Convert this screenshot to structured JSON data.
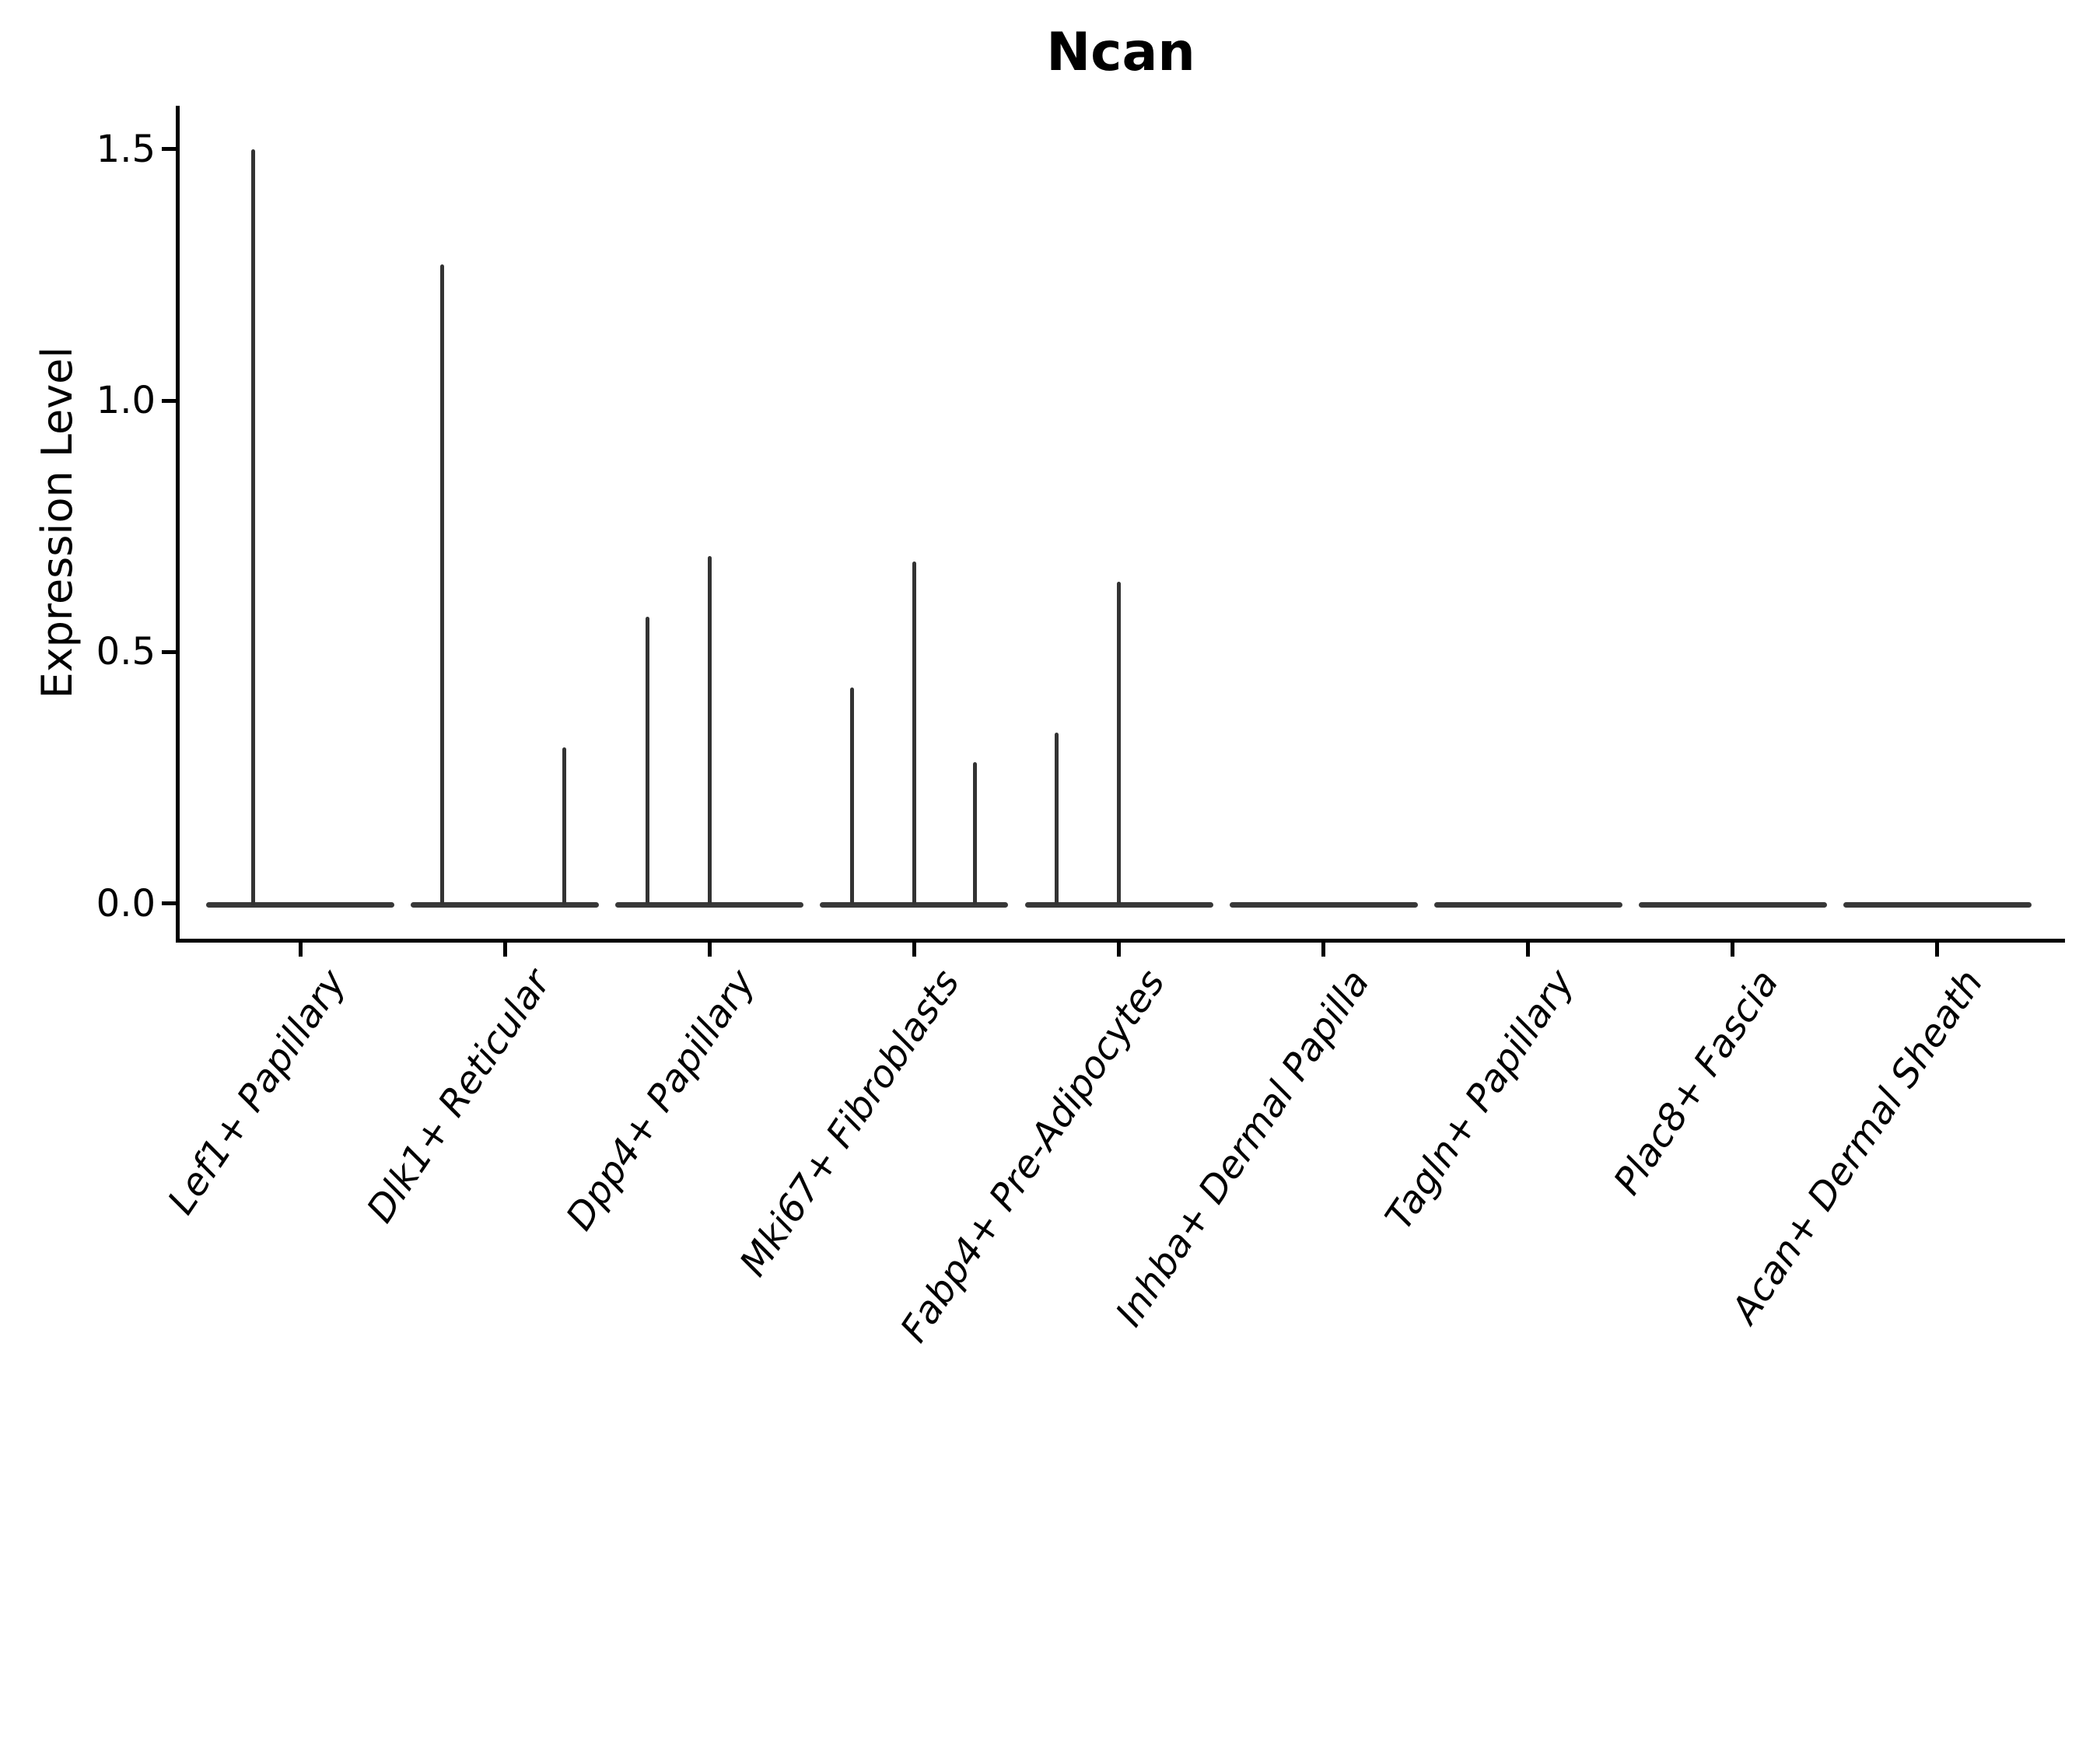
{
  "title": "Ncan",
  "y_axis": {
    "label": "Expression Level",
    "tick_labels": [
      "0.0",
      "0.5",
      "1.0",
      "1.5"
    ],
    "tick_values": [
      0.0,
      0.5,
      1.0,
      1.5
    ]
  },
  "x_axis": {
    "tick_labels": [
      "Lef1+ Papillary",
      "Dlk1+ Reticular",
      "Dpp4+ Papillary",
      "Mki67+ Fibroblasts",
      "Fabp4+ Pre-Adipocytes",
      "Inhba+ Dermal Papilla",
      "Tagln+ Papillary",
      "Plac8+ Fascia",
      "Acan+ Dermal Sheath"
    ]
  },
  "colors": {
    "violin": "#333333",
    "axis": "#000000",
    "text": "#000000",
    "background": "#ffffff"
  },
  "chart_data": {
    "type": "violin",
    "title": "Ncan",
    "xlabel": "",
    "ylabel": "Expression Level",
    "ylim": [
      -0.07,
      1.59
    ],
    "y_ticks": [
      0.0,
      0.5,
      1.0,
      1.5
    ],
    "grid": false,
    "legend": false,
    "categories": [
      "Lef1+ Papillary",
      "Dlk1+ Reticular",
      "Dpp4+ Papillary",
      "Mki67+ Fibroblasts",
      "Fabp4+ Pre-Adipocytes",
      "Inhba+ Dermal Papilla",
      "Tagln+ Papillary",
      "Plac8+ Fascia",
      "Acan+ Dermal Sheath"
    ],
    "note": "Expression is ~0 for most cells: each violin collapses to a flat bar at 0 with thin vertical spikes reaching the maximum expression of rare positive cells. dx = horizontal offset (px) of each spike from the category center.",
    "violins": [
      {
        "category": "Lef1+ Papillary",
        "base_value": 0,
        "spikes": [
          {
            "dx": -61,
            "max": 1.5
          }
        ]
      },
      {
        "category": "Dlk1+ Reticular",
        "base_value": 0,
        "spikes": [
          {
            "dx": -81,
            "max": 1.27
          },
          {
            "dx": 76,
            "max": 0.31
          }
        ]
      },
      {
        "category": "Dpp4+ Papillary",
        "base_value": 0,
        "spikes": [
          {
            "dx": -80,
            "max": 0.57
          },
          {
            "dx": 0,
            "max": 0.69
          }
        ]
      },
      {
        "category": "Mki67+ Fibroblasts",
        "base_value": 0,
        "spikes": [
          {
            "dx": -80,
            "max": 0.43
          },
          {
            "dx": 0,
            "max": 0.68
          },
          {
            "dx": 78,
            "max": 0.28
          }
        ]
      },
      {
        "category": "Fabp4+ Pre-Adipocytes",
        "base_value": 0,
        "spikes": [
          {
            "dx": -80,
            "max": 0.34
          },
          {
            "dx": 0,
            "max": 0.64
          }
        ]
      },
      {
        "category": "Inhba+ Dermal Papilla",
        "base_value": 0,
        "spikes": []
      },
      {
        "category": "Tagln+ Papillary",
        "base_value": 0,
        "spikes": []
      },
      {
        "category": "Plac8+ Fascia",
        "base_value": 0,
        "spikes": []
      },
      {
        "category": "Acan+ Dermal Sheath",
        "base_value": 0,
        "spikes": []
      }
    ]
  }
}
